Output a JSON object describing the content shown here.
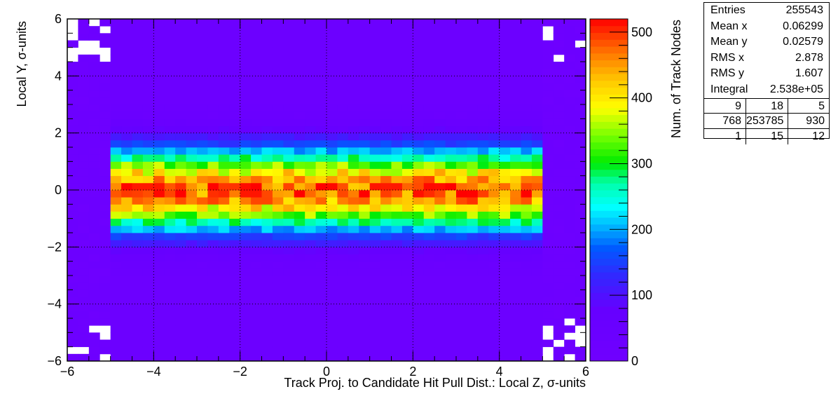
{
  "chart_data": {
    "type": "heatmap",
    "title": "",
    "xlabel": "Track Proj. to Candidate Hit Pull Dist.: Local Z, σ-units",
    "ylabel": "Local Y, σ-units",
    "zlabel": "Num. of Track Nodes",
    "xlim": [
      -6,
      6
    ],
    "ylim": [
      -6,
      6
    ],
    "zlim": [
      0,
      520
    ],
    "x_ticks": [
      -6,
      -4,
      -2,
      0,
      2,
      4,
      6
    ],
    "y_ticks": [
      -6,
      -4,
      -2,
      0,
      2,
      4,
      6
    ],
    "z_ticks": [
      0,
      100,
      200,
      300,
      400,
      500
    ],
    "x_tick_labels": [
      "−6",
      "−4",
      "−2",
      "0",
      "2",
      "4",
      "6"
    ],
    "y_tick_labels": [
      "−6",
      "−4",
      "−2",
      "0",
      "2",
      "4",
      "6"
    ],
    "z_tick_labels": [
      "0",
      "100",
      "200",
      "300",
      "400",
      "500"
    ],
    "bins_x": 48,
    "bins_y": 48,
    "grid": true,
    "palette": "rainbow (violet → blue → cyan → green → yellow → red)",
    "band_x_range": [
      -5,
      5
    ],
    "band_peak_y": 0,
    "band_sigma_y": 1.0,
    "peak_value": 520,
    "outer_region_value": 25
  },
  "stats_box": {
    "rows": [
      {
        "label": "Entries",
        "value": "255543"
      },
      {
        "label": "Mean x",
        "value": "0.06299"
      },
      {
        "label": "Mean y",
        "value": "0.02579"
      },
      {
        "label": "RMS x",
        "value": "2.878"
      },
      {
        "label": "RMS y",
        "value": "1.607"
      },
      {
        "label": "Integral",
        "value": "2.538e+05"
      }
    ],
    "grid": [
      [
        "9",
        "18",
        "5"
      ],
      [
        "768",
        "253785",
        "930"
      ],
      [
        "1",
        "15",
        "12"
      ]
    ]
  }
}
